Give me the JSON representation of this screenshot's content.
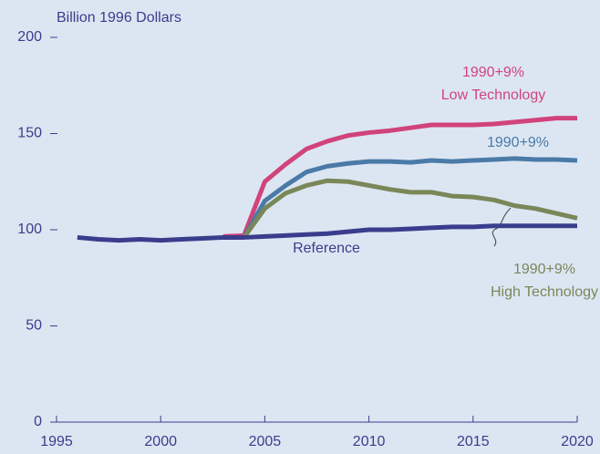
{
  "chart_data": {
    "type": "line",
    "y_label": "Billion 1996 Dollars",
    "x": [
      1996,
      1997,
      1998,
      1999,
      2000,
      2001,
      2002,
      2003,
      2004,
      2005,
      2006,
      2007,
      2008,
      2009,
      2010,
      2011,
      2012,
      2013,
      2014,
      2015,
      2016,
      2017,
      2018,
      2019,
      2020
    ],
    "series": [
      {
        "label": [
          "1990+9%",
          "Low Technology"
        ],
        "color": "#d1437b",
        "values": [
          null,
          null,
          null,
          null,
          null,
          null,
          null,
          96.5,
          97,
          125,
          134,
          142,
          146,
          149,
          150.5,
          151.5,
          153,
          154.5,
          154.5,
          154.5,
          155,
          156,
          157,
          158,
          158
        ]
      },
      {
        "label": [
          "1990+9%"
        ],
        "color": "#4a7aa7",
        "values": [
          null,
          null,
          null,
          null,
          null,
          null,
          null,
          null,
          96,
          115,
          123,
          130,
          133,
          134.5,
          135.5,
          135.5,
          135,
          136,
          135.5,
          136,
          136.5,
          137,
          136.5,
          136.5,
          136
        ]
      },
      {
        "label": [
          "1990+9%",
          "High Technology"
        ],
        "color": "#7a8759",
        "values": [
          null,
          null,
          null,
          null,
          null,
          null,
          null,
          null,
          96,
          111,
          119,
          123,
          125.5,
          125,
          123,
          121,
          119.5,
          119.5,
          117.5,
          117,
          115.5,
          112.5,
          111,
          108.5,
          106
        ]
      },
      {
        "label": [
          "Reference"
        ],
        "color": "#3a3d8c",
        "values": [
          96,
          95,
          94.5,
          95,
          94.5,
          95,
          95.5,
          96,
          96,
          96.5,
          97,
          97.5,
          98,
          99,
          100,
          100,
          100.5,
          101,
          101.5,
          101.5,
          102,
          102,
          102,
          102,
          102
        ]
      }
    ],
    "xlim": [
      1995,
      2020
    ],
    "ylim": [
      0,
      200
    ],
    "xticks": [
      1995,
      2000,
      2005,
      2010,
      2015,
      2020
    ],
    "yticks": [
      0,
      50,
      100,
      150,
      200
    ]
  }
}
